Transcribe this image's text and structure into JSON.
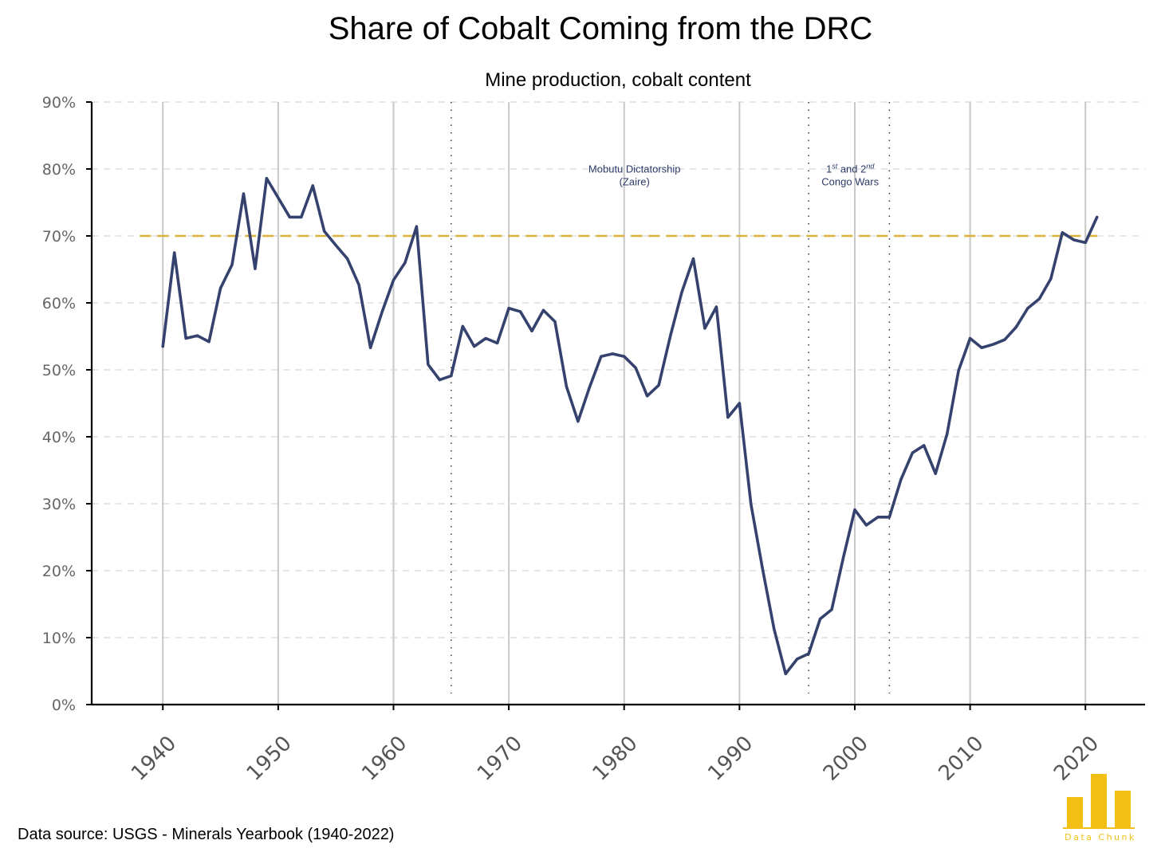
{
  "title": "Share of Cobalt Coming from the DRC",
  "subtitle": "Mine production, cobalt content",
  "source": "Data source: USGS - Minerals Yearbook (1940-2022)",
  "logo": {
    "text": "Data Chunk",
    "color": "#f2c014"
  },
  "chart_data": {
    "type": "line",
    "title": "Share of Cobalt Coming from the DRC",
    "subtitle": "Mine production, cobalt content",
    "xlabel": "",
    "ylabel": "",
    "xlim": [
      1934,
      2025
    ],
    "ylim": [
      0,
      90
    ],
    "xticks": [
      1940,
      1950,
      1960,
      1970,
      1980,
      1990,
      2000,
      2010,
      2020
    ],
    "yticks": [
      0,
      10,
      20,
      30,
      40,
      50,
      60,
      70,
      80,
      90
    ],
    "ytick_labels": [
      "0%",
      "10%",
      "20%",
      "30%",
      "40%",
      "50%",
      "60%",
      "70%",
      "80%",
      "90%"
    ],
    "grid": "horizontal dashed + vertical at x ticks",
    "line_color": "#35426e",
    "reference_line": {
      "y": 70,
      "x_start": 1938,
      "x_end": 2021,
      "color": "#d9b13c",
      "style": "dashed"
    },
    "event_lines": [
      1965,
      1996,
      2003
    ],
    "annotations": [
      {
        "x": 1980.9,
        "y": 79,
        "lines": [
          "Mobutu Dictatorship",
          "(Zaire)"
        ]
      },
      {
        "x": 1999.6,
        "y": 79,
        "lines": [
          "1st and 2nd",
          "Congo Wars"
        ]
      }
    ],
    "x": [
      1940,
      1941,
      1942,
      1943,
      1944,
      1945,
      1946,
      1947,
      1948,
      1949,
      1950,
      1951,
      1952,
      1953,
      1954,
      1955,
      1956,
      1957,
      1958,
      1959,
      1960,
      1961,
      1962,
      1963,
      1964,
      1965,
      1966,
      1967,
      1968,
      1969,
      1970,
      1971,
      1972,
      1973,
      1974,
      1975,
      1976,
      1977,
      1978,
      1979,
      1980,
      1981,
      1982,
      1983,
      1984,
      1985,
      1986,
      1987,
      1988,
      1989,
      1990,
      1991,
      1992,
      1993,
      1994,
      1995,
      1996,
      1997,
      1998,
      1999,
      2000,
      2001,
      2002,
      2003,
      2004,
      2005,
      2006,
      2007,
      2008,
      2009,
      2010,
      2011,
      2012,
      2013,
      2014,
      2015,
      2016,
      2017,
      2018,
      2019,
      2020,
      2021
    ],
    "series": [
      {
        "values": [
          53.5,
          67.5,
          54.7,
          55.1,
          54.2,
          62.2,
          65.7,
          76.3,
          65.1,
          78.6,
          75.7,
          72.8,
          72.8,
          77.5,
          70.7,
          68.6,
          66.6,
          62.7,
          53.3,
          58.6,
          63.4,
          66.0,
          71.4,
          50.8,
          48.5,
          49.1,
          56.5,
          53.5,
          54.7,
          54.0,
          59.2,
          58.7,
          55.8,
          58.9,
          57.2,
          47.5,
          42.3,
          47.4,
          52.0,
          52.4,
          52.0,
          50.3,
          46.1,
          47.7,
          55.0,
          61.6,
          66.6,
          56.2,
          59.4,
          42.9,
          45.0,
          29.9,
          20.3,
          11.3,
          4.6,
          6.8,
          7.6,
          12.8,
          14.2,
          21.9,
          29.1,
          26.8,
          28.0,
          28.0,
          33.6,
          37.6,
          38.7,
          34.5,
          40.4,
          49.9,
          54.7,
          53.3,
          53.8,
          54.5,
          56.4,
          59.2,
          60.6,
          63.6,
          70.5,
          69.4,
          69.0,
          72.8
        ]
      }
    ]
  }
}
